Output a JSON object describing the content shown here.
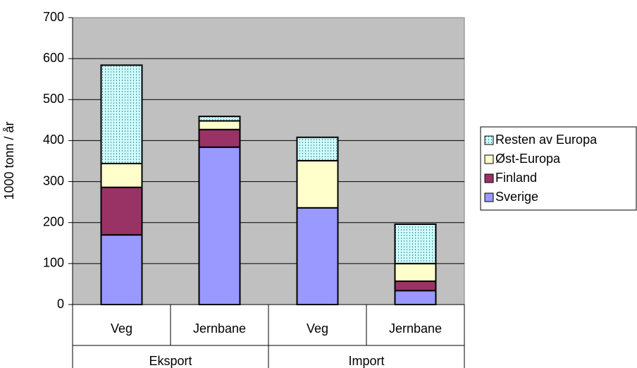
{
  "chart_data": {
    "type": "stacked_bar",
    "y_label": "1000 tonn / år",
    "categories": [
      "Veg",
      "Jernbane",
      "Veg",
      "Jernbane"
    ],
    "groups": [
      "Eksport",
      "Import"
    ],
    "series": [
      {
        "name": "Sverige",
        "color": "#9999ff",
        "values": [
          170,
          384,
          236,
          34
        ]
      },
      {
        "name": "Finland",
        "color": "#993366",
        "values": [
          116,
          43,
          0,
          23
        ]
      },
      {
        "name": "Øst-Europa",
        "color": "#ffffcc",
        "values": [
          58,
          21,
          115,
          43
        ]
      },
      {
        "name": "Resten av Europa",
        "color": "#ccffff",
        "pattern": "dotted",
        "values": [
          240,
          11,
          57,
          96
        ]
      }
    ],
    "ylim": [
      0,
      700
    ],
    "yticks": [
      0,
      100,
      200,
      300,
      400,
      500,
      600,
      700
    ],
    "grid": true,
    "legend": "right"
  }
}
